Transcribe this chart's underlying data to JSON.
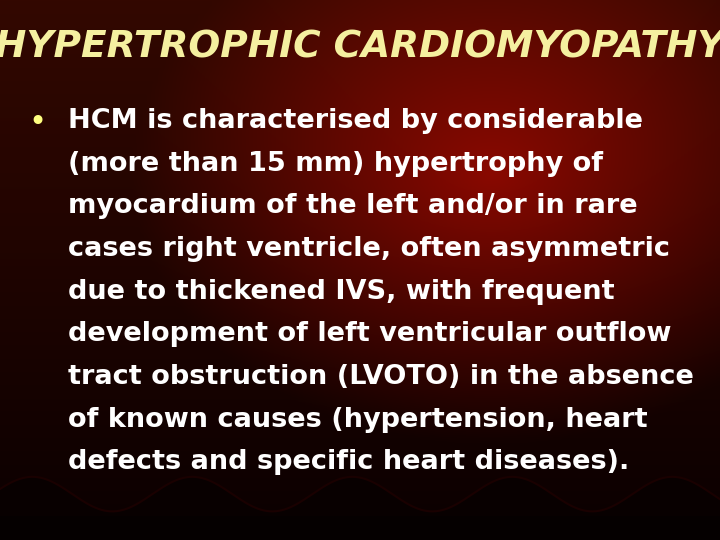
{
  "title": "HYPERTROPHIC CARDIOMYOPATHY",
  "title_color": "#F5F0A0",
  "title_fontsize": 27,
  "bullet_lines": [
    "HCM is characterised by considerable",
    "(more than 15 mm) hypertrophy of",
    "myocardium of the left and/or in rare",
    "cases right ventricle, often asymmetric",
    "due to thickened IVS, with frequent",
    "development of left ventricular outflow",
    "tract obstruction (LVOTO) in the absence",
    "of known causes (hypertension, heart",
    "defects and specific heart diseases)."
  ],
  "bullet_color": "#FFFFFF",
  "bullet_fontsize": 19.5,
  "bullet_dot_color": "#FFFF80",
  "fig_width": 7.2,
  "fig_height": 5.4,
  "dpi": 100
}
